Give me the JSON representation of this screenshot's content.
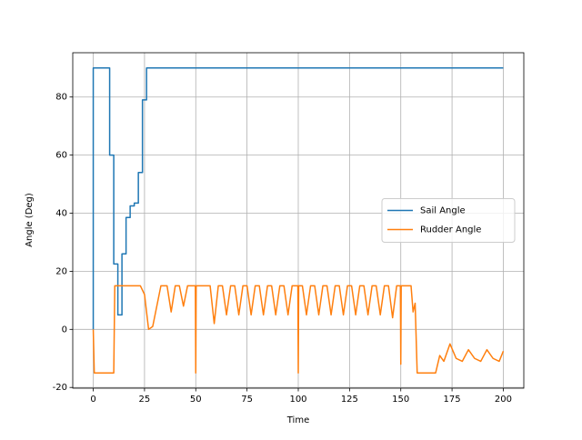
{
  "chart_data": {
    "type": "line",
    "xlabel": "Time",
    "ylabel": "Angle (Deg)",
    "xlim": [
      -10,
      210
    ],
    "ylim": [
      -20.25,
      95.25
    ],
    "xticks": [
      0,
      25,
      50,
      75,
      100,
      125,
      150,
      175,
      200
    ],
    "yticks": [
      -20,
      0,
      20,
      40,
      60,
      80
    ],
    "grid": true,
    "legend": "center right",
    "series": [
      {
        "name": "Sail Angle",
        "color": "#1f77b4",
        "x": [
          0,
          0,
          8,
          8,
          10,
          10,
          12,
          12,
          14,
          14,
          16,
          16,
          18,
          18,
          20,
          20,
          22,
          22,
          24,
          24,
          26,
          26,
          200
        ],
        "values": [
          0,
          90,
          90,
          60,
          60,
          22.5,
          22.5,
          5,
          5,
          26,
          26,
          38.5,
          38.5,
          42.5,
          42.5,
          43.5,
          43.5,
          54,
          54,
          79,
          79,
          90,
          90
        ]
      },
      {
        "name": "Rudder Angle",
        "color": "#ff7f0e",
        "x": [
          0,
          0.5,
          10,
          10.5,
          23,
          25,
          27,
          29,
          31,
          33,
          36,
          38,
          40,
          42,
          44,
          46,
          48,
          49.8,
          50,
          50.2,
          52,
          54,
          57,
          59,
          61,
          63,
          65,
          67,
          69,
          71,
          73,
          75,
          77,
          79,
          81,
          83,
          85,
          87,
          89,
          91,
          93,
          95,
          97,
          99,
          99.8,
          100,
          100.2,
          102,
          104,
          106,
          108,
          110,
          112,
          114,
          116,
          118,
          120,
          122,
          124,
          126,
          128,
          130,
          132,
          134,
          136,
          138,
          140,
          142,
          144,
          146,
          148,
          149.8,
          150,
          150.2,
          152,
          154,
          155,
          156,
          157,
          158,
          167,
          169,
          171,
          174,
          177,
          180,
          183,
          186,
          189,
          192,
          195,
          198,
          200
        ],
        "values": [
          0,
          -15,
          -15,
          15,
          15,
          12,
          0,
          1,
          8,
          15,
          15,
          6,
          15,
          15,
          8,
          15,
          15,
          15,
          -15,
          15,
          15,
          15,
          15,
          2,
          15,
          15,
          5,
          15,
          15,
          5,
          15,
          15,
          5,
          15,
          15,
          5,
          15,
          15,
          5,
          15,
          15,
          5,
          15,
          15,
          15,
          -15,
          15,
          15,
          5,
          15,
          15,
          5,
          15,
          15,
          5,
          15,
          15,
          5,
          15,
          15,
          5,
          15,
          15,
          5,
          15,
          15,
          5,
          15,
          15,
          4,
          15,
          15,
          -12,
          15,
          15,
          15,
          15,
          6,
          9,
          -15,
          -15,
          -9,
          -11,
          -5,
          -10,
          -11,
          -7,
          -10,
          -11,
          -7,
          -10,
          -11,
          -7.5
        ]
      }
    ]
  }
}
